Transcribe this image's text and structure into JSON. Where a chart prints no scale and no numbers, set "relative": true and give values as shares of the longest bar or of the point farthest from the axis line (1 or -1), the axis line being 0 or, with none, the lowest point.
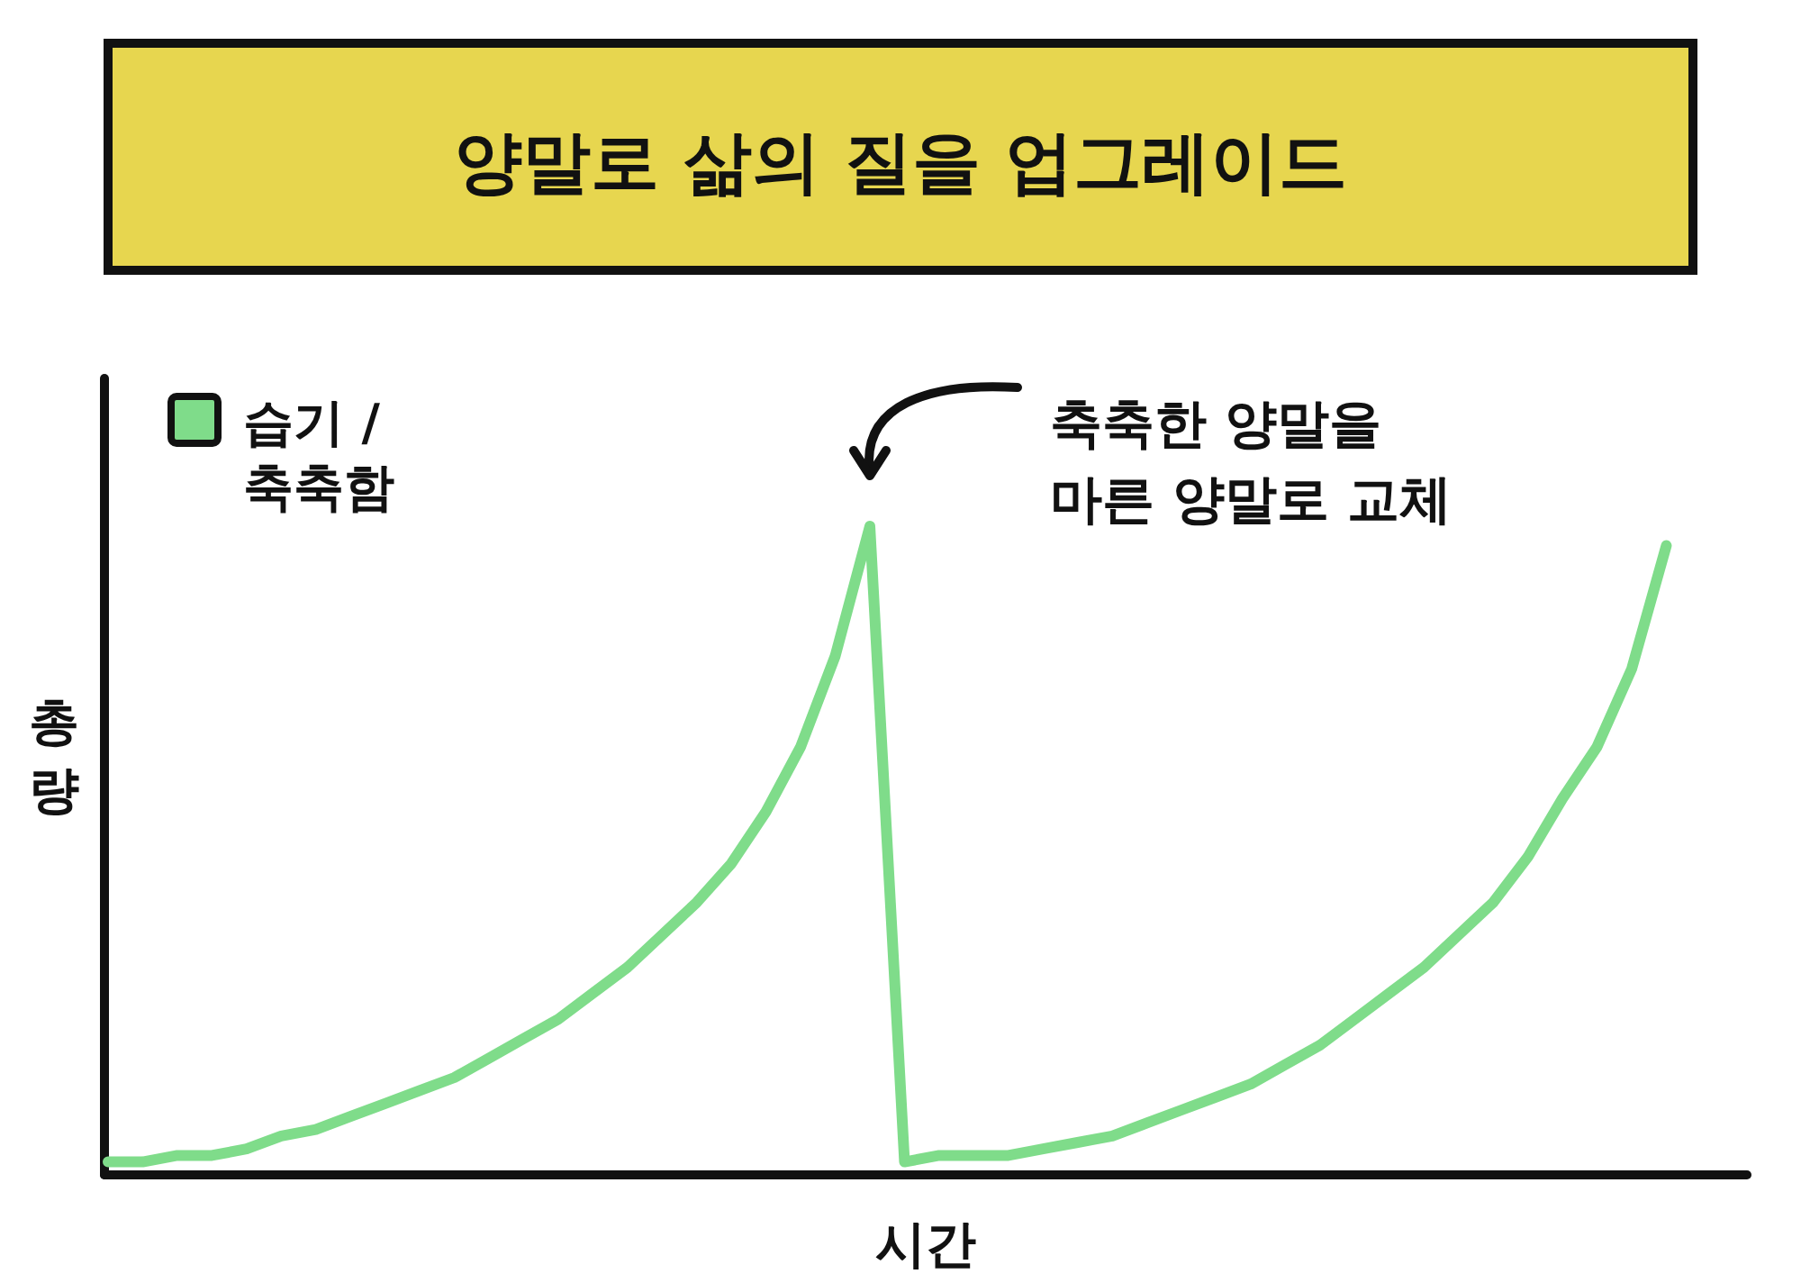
{
  "chart_data": {
    "type": "line",
    "title": "양말로 삶의 질을 업그레이드",
    "xlabel": "시간",
    "ylabel": "총량",
    "relative": true,
    "legend": "top left",
    "categories": [
      null,
      null,
      null,
      null,
      null,
      null,
      null,
      null,
      null,
      null,
      null,
      null,
      null,
      null,
      null,
      null,
      null,
      null,
      null,
      null,
      null,
      null,
      null,
      null,
      null,
      null,
      null,
      null,
      null,
      null,
      null,
      null,
      null,
      null,
      null,
      null,
      null,
      null,
      null,
      null,
      null,
      null,
      null,
      null,
      null,
      null
    ],
    "series": [
      {
        "name": "습기 / 축축함",
        "color": "#7fdc8a",
        "values": [
          0.02,
          0.02,
          0.03,
          0.03,
          0.04,
          0.06,
          0.07,
          0.09,
          0.11,
          0.13,
          0.15,
          0.18,
          0.21,
          0.24,
          0.28,
          0.32,
          0.37,
          0.42,
          0.48,
          0.56,
          0.66,
          0.8,
          1,
          0.02,
          0.03,
          0.03,
          0.03,
          0.04,
          0.05,
          0.06,
          0.08,
          0.1,
          0.12,
          0.14,
          0.17,
          0.2,
          0.24,
          0.28,
          0.32,
          0.37,
          0.42,
          0.49,
          0.58,
          0.66,
          0.78,
          0.97
        ]
      }
    ],
    "annotations": [
      "축축한 양말을 마른 양말로 교체"
    ]
  }
}
